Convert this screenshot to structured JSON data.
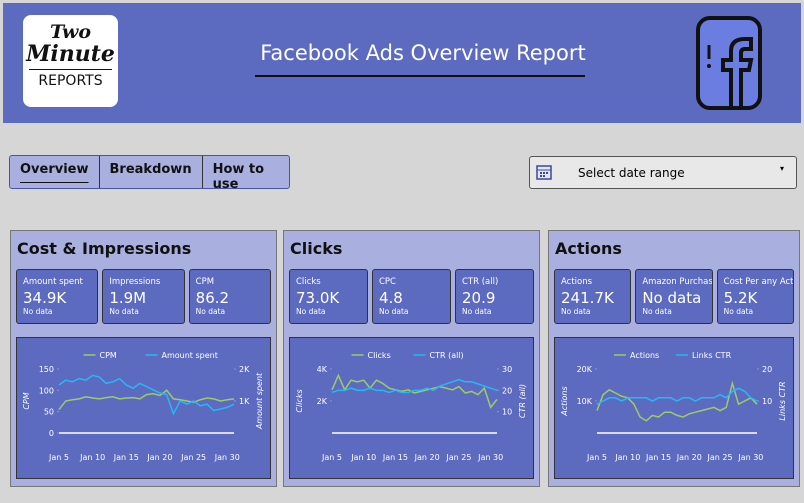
{
  "header": {
    "title": "Facebook Ads Overview Report",
    "logo": [
      "Two",
      "Minute",
      "REPORTS"
    ]
  },
  "tabs": [
    "Overview",
    "Breakdown",
    "How to use"
  ],
  "date_picker": "Select date range",
  "panels": [
    {
      "title": "Cost & Impressions",
      "cards": [
        {
          "label": "Amount spent",
          "value": "34.9K",
          "note": "No data"
        },
        {
          "label": "Impressions",
          "value": "1.9M",
          "note": "No data"
        },
        {
          "label": "CPM",
          "value": "86.2",
          "note": "No data"
        }
      ]
    },
    {
      "title": "Clicks",
      "cards": [
        {
          "label": "Clicks",
          "value": "73.0K",
          "note": "No data"
        },
        {
          "label": "CPC",
          "value": "4.8",
          "note": "No data"
        },
        {
          "label": "CTR (all)",
          "value": "20.9",
          "note": "No data"
        }
      ]
    },
    {
      "title": "Actions",
      "cards": [
        {
          "label": "Actions",
          "value": "241.7K",
          "note": "No data"
        },
        {
          "label": "Amazon Purchase Z",
          "value": "No data",
          "note": "No data"
        },
        {
          "label": "Cost Per any Action",
          "value": "5.2K",
          "note": "No data"
        }
      ]
    }
  ],
  "chart_data": [
    {
      "type": "line",
      "categories": [
        "Jan 5",
        null,
        null,
        null,
        null,
        "Jan 10",
        null,
        null,
        null,
        null,
        "Jan 15",
        null,
        null,
        null,
        null,
        "Jan 20",
        null,
        null,
        null,
        null,
        "Jan 25",
        null,
        null,
        null,
        null,
        "Jan 30",
        null
      ],
      "ylabel": "CPM",
      "y2label": "Amount spent",
      "ylim": [
        0,
        150
      ],
      "yticks": [
        0,
        50,
        100,
        150
      ],
      "y2lim": [
        0,
        2000
      ],
      "y2ticks": [
        {
          "value": 1000,
          "label": "1K"
        },
        {
          "value": 2000,
          "label": "2K"
        }
      ],
      "series": [
        {
          "name": "CPM",
          "color": "#9ccc65",
          "values": [
            55,
            75,
            78,
            80,
            85,
            82,
            80,
            83,
            85,
            80,
            82,
            83,
            80,
            90,
            92,
            88,
            100,
            80,
            78,
            75,
            72,
            78,
            82,
            80,
            75,
            78,
            80
          ]
        },
        {
          "name": "Amount spent",
          "color": "#29b6f6",
          "axis": "y2",
          "values": [
            1500,
            1650,
            1600,
            1700,
            1650,
            1800,
            1750,
            1550,
            1600,
            1700,
            1500,
            1400,
            1550,
            1450,
            1350,
            1250,
            1200,
            600,
            1000,
            900,
            1000,
            850,
            900,
            700,
            750,
            800,
            900
          ]
        }
      ]
    },
    {
      "type": "line",
      "categories": [
        "Jan 5",
        null,
        null,
        null,
        null,
        "Jan 10",
        null,
        null,
        null,
        null,
        "Jan 15",
        null,
        null,
        null,
        null,
        "Jan 20",
        null,
        null,
        null,
        null,
        "Jan 25",
        null,
        null,
        null,
        null,
        "Jan 30",
        null
      ],
      "ylabel": "Clicks",
      "y2label": "CTR (all)",
      "ylim": [
        0,
        4000
      ],
      "yticks": [
        {
          "value": 2000,
          "label": "2K"
        },
        {
          "value": 4000,
          "label": "4K"
        }
      ],
      "y2lim": [
        0,
        30
      ],
      "y2ticks": [
        10,
        20,
        30
      ],
      "series": [
        {
          "name": "Clicks",
          "color": "#9ccc65",
          "values": [
            2700,
            3600,
            2700,
            3300,
            3200,
            3300,
            2800,
            3300,
            3100,
            2800,
            2700,
            2600,
            2700,
            2500,
            2600,
            2700,
            2800,
            2900,
            2800,
            2700,
            2900,
            2500,
            2600,
            2400,
            2800,
            1600,
            2100
          ]
        },
        {
          "name": "CTR (all)",
          "color": "#29b6f6",
          "axis": "y2",
          "values": [
            19,
            20,
            20,
            21,
            20,
            20,
            21,
            20,
            20,
            19,
            20,
            19,
            19,
            20,
            20,
            21,
            20,
            22,
            23,
            24,
            25,
            24,
            24,
            23,
            22,
            21,
            20
          ]
        }
      ]
    },
    {
      "type": "line",
      "categories": [
        "Jan 5",
        null,
        null,
        null,
        null,
        "Jan 10",
        null,
        null,
        null,
        null,
        "Jan 15",
        null,
        null,
        null,
        null,
        "Jan 20",
        null,
        null,
        null,
        null,
        "Jan 25",
        null,
        null,
        null,
        null,
        "Jan 30",
        null
      ],
      "ylabel": "Actions",
      "y2label": "Links CTR",
      "ylim": [
        0,
        20000
      ],
      "yticks": [
        {
          "value": 10000,
          "label": "10K"
        },
        {
          "value": 20000,
          "label": "20K"
        }
      ],
      "y2lim": [
        0,
        20
      ],
      "y2ticks": [
        10,
        20
      ],
      "series": [
        {
          "name": "Actions",
          "color": "#9ccc65",
          "values": [
            7000,
            12000,
            13500,
            12500,
            11500,
            11000,
            9000,
            5000,
            3800,
            5500,
            5000,
            6500,
            6500,
            5500,
            5000,
            6000,
            6500,
            7000,
            7500,
            8000,
            7000,
            8000,
            15500,
            9000,
            10000,
            11000,
            9000
          ]
        },
        {
          "name": "Links CTR",
          "color": "#29b6f6",
          "axis": "y2",
          "values": [
            9,
            10,
            11,
            11,
            10,
            11,
            11,
            11,
            11,
            10,
            11,
            11,
            11,
            10,
            11,
            11,
            10,
            11,
            11,
            11,
            12,
            11,
            13,
            14,
            13,
            11,
            10
          ]
        }
      ]
    }
  ]
}
